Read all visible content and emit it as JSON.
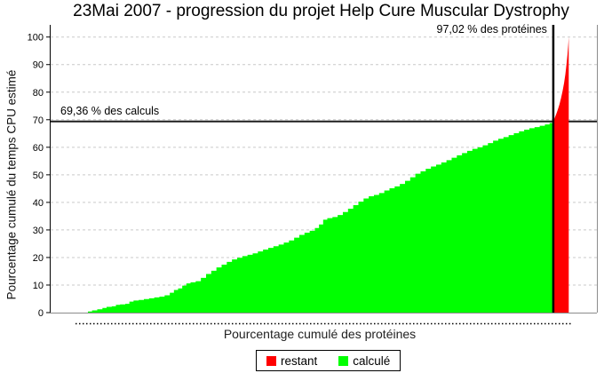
{
  "chart_data": {
    "type": "area",
    "title": "23Mai 2007 - progression du projet Help Cure Muscular Dystrophy",
    "xlabel": "Pourcentage cumulé des protéines",
    "ylabel": "Pourcentage cumulé du temps CPU estimé",
    "xlim": [
      0,
      100
    ],
    "ylim": [
      0,
      100
    ],
    "y_ticks": [
      0,
      10,
      20,
      30,
      40,
      50,
      60,
      70,
      80,
      90,
      100
    ],
    "grid": "horizontal-dashed",
    "legend_position": "bottom-center",
    "annotations": {
      "calculs": {
        "label": "69,36 % des calculs",
        "type": "hline",
        "value": 69.36
      },
      "proteines": {
        "label": "97,02 % des protéines",
        "type": "vline",
        "value": 97.02
      }
    },
    "series": [
      {
        "name": "calculé",
        "color": "#00ff00",
        "interpolation": "step",
        "points": [
          [
            0,
            0
          ],
          [
            6.6,
            0
          ],
          [
            7.2,
            0.4
          ],
          [
            8,
            0.8
          ],
          [
            9,
            1.2
          ],
          [
            10,
            1.7
          ],
          [
            10.8,
            2.1
          ],
          [
            11.8,
            2.3
          ],
          [
            12.6,
            2.8
          ],
          [
            13.4,
            3.0
          ],
          [
            14.4,
            3.2
          ],
          [
            15.2,
            4.0
          ],
          [
            16,
            4.4
          ],
          [
            17,
            4.6
          ],
          [
            18,
            4.9
          ],
          [
            19,
            5.2
          ],
          [
            20,
            5.5
          ],
          [
            21,
            5.8
          ],
          [
            22,
            6.3
          ],
          [
            23,
            7.2
          ],
          [
            23.8,
            8.2
          ],
          [
            24.6,
            8.8
          ],
          [
            25.4,
            9.8
          ],
          [
            26.2,
            10.6
          ],
          [
            27,
            11.0
          ],
          [
            28,
            11.4
          ],
          [
            29,
            12.6
          ],
          [
            30,
            14.0
          ],
          [
            31,
            15.2
          ],
          [
            32,
            16.4
          ],
          [
            33,
            17.4
          ],
          [
            34,
            18.4
          ],
          [
            35,
            19.3
          ],
          [
            36,
            19.9
          ],
          [
            37,
            20.5
          ],
          [
            38,
            21.0
          ],
          [
            39,
            21.5
          ],
          [
            40,
            22.2
          ],
          [
            41,
            22.9
          ],
          [
            42,
            23.5
          ],
          [
            43,
            24.1
          ],
          [
            44,
            24.7
          ],
          [
            45,
            25.4
          ],
          [
            46,
            26.2
          ],
          [
            47,
            27.2
          ],
          [
            48,
            28.2
          ],
          [
            49,
            29.0
          ],
          [
            50,
            29.7
          ],
          [
            51,
            30.7
          ],
          [
            51.8,
            32.0
          ],
          [
            52.6,
            33.7
          ],
          [
            53.4,
            34.3
          ],
          [
            54.4,
            34.7
          ],
          [
            55.4,
            35.4
          ],
          [
            56.4,
            36.5
          ],
          [
            57.4,
            37.7
          ],
          [
            58.4,
            39.0
          ],
          [
            59.4,
            40.3
          ],
          [
            60.4,
            41.4
          ],
          [
            61.4,
            42.2
          ],
          [
            62.4,
            42.7
          ],
          [
            63.4,
            43.4
          ],
          [
            64.4,
            44.3
          ],
          [
            65.4,
            45.1
          ],
          [
            66.4,
            45.8
          ],
          [
            67.4,
            46.7
          ],
          [
            68.4,
            47.8
          ],
          [
            69.4,
            49.1
          ],
          [
            70.4,
            50.4
          ],
          [
            71.4,
            51.3
          ],
          [
            72.4,
            52.2
          ],
          [
            73.4,
            53.0
          ],
          [
            74.4,
            53.7
          ],
          [
            75.4,
            54.5
          ],
          [
            76.4,
            55.3
          ],
          [
            77.4,
            56.2
          ],
          [
            78.4,
            57.1
          ],
          [
            79.4,
            57.9
          ],
          [
            80.4,
            58.7
          ],
          [
            81.4,
            59.4
          ],
          [
            82.4,
            60.0
          ],
          [
            83.4,
            60.7
          ],
          [
            84.4,
            61.5
          ],
          [
            85.4,
            62.4
          ],
          [
            86.4,
            63.1
          ],
          [
            87.4,
            63.7
          ],
          [
            88.4,
            64.4
          ],
          [
            89.4,
            65.1
          ],
          [
            90.4,
            65.8
          ],
          [
            91.4,
            66.4
          ],
          [
            92.4,
            66.9
          ],
          [
            93.4,
            67.3
          ],
          [
            94.4,
            67.8
          ],
          [
            95.4,
            68.3
          ],
          [
            96.3,
            68.8
          ],
          [
            97.02,
            69.36
          ]
        ]
      },
      {
        "name": "restant",
        "color": "#ff0000",
        "interpolation": "linear",
        "points": [
          [
            97.02,
            69.36
          ],
          [
            97.3,
            70.7
          ],
          [
            97.6,
            72.1
          ],
          [
            97.9,
            73.7
          ],
          [
            98.2,
            75.5
          ],
          [
            98.5,
            77.7
          ],
          [
            98.8,
            80.3
          ],
          [
            99.1,
            83.3
          ],
          [
            99.35,
            86.5
          ],
          [
            99.55,
            89.8
          ],
          [
            99.75,
            93.5
          ],
          [
            99.9,
            97.0
          ],
          [
            100,
            100
          ]
        ]
      }
    ],
    "legend": [
      {
        "label": "restant",
        "color": "#ff0000"
      },
      {
        "label": "calculé",
        "color": "#00ff00"
      }
    ]
  },
  "colors": {
    "background": "#ffffff",
    "grid": "#c9c9c9",
    "axis": "#000000",
    "plot_border": "#8c8c8c",
    "hline": "#1f1f1f",
    "vline": "#000000",
    "text": "#000000"
  }
}
